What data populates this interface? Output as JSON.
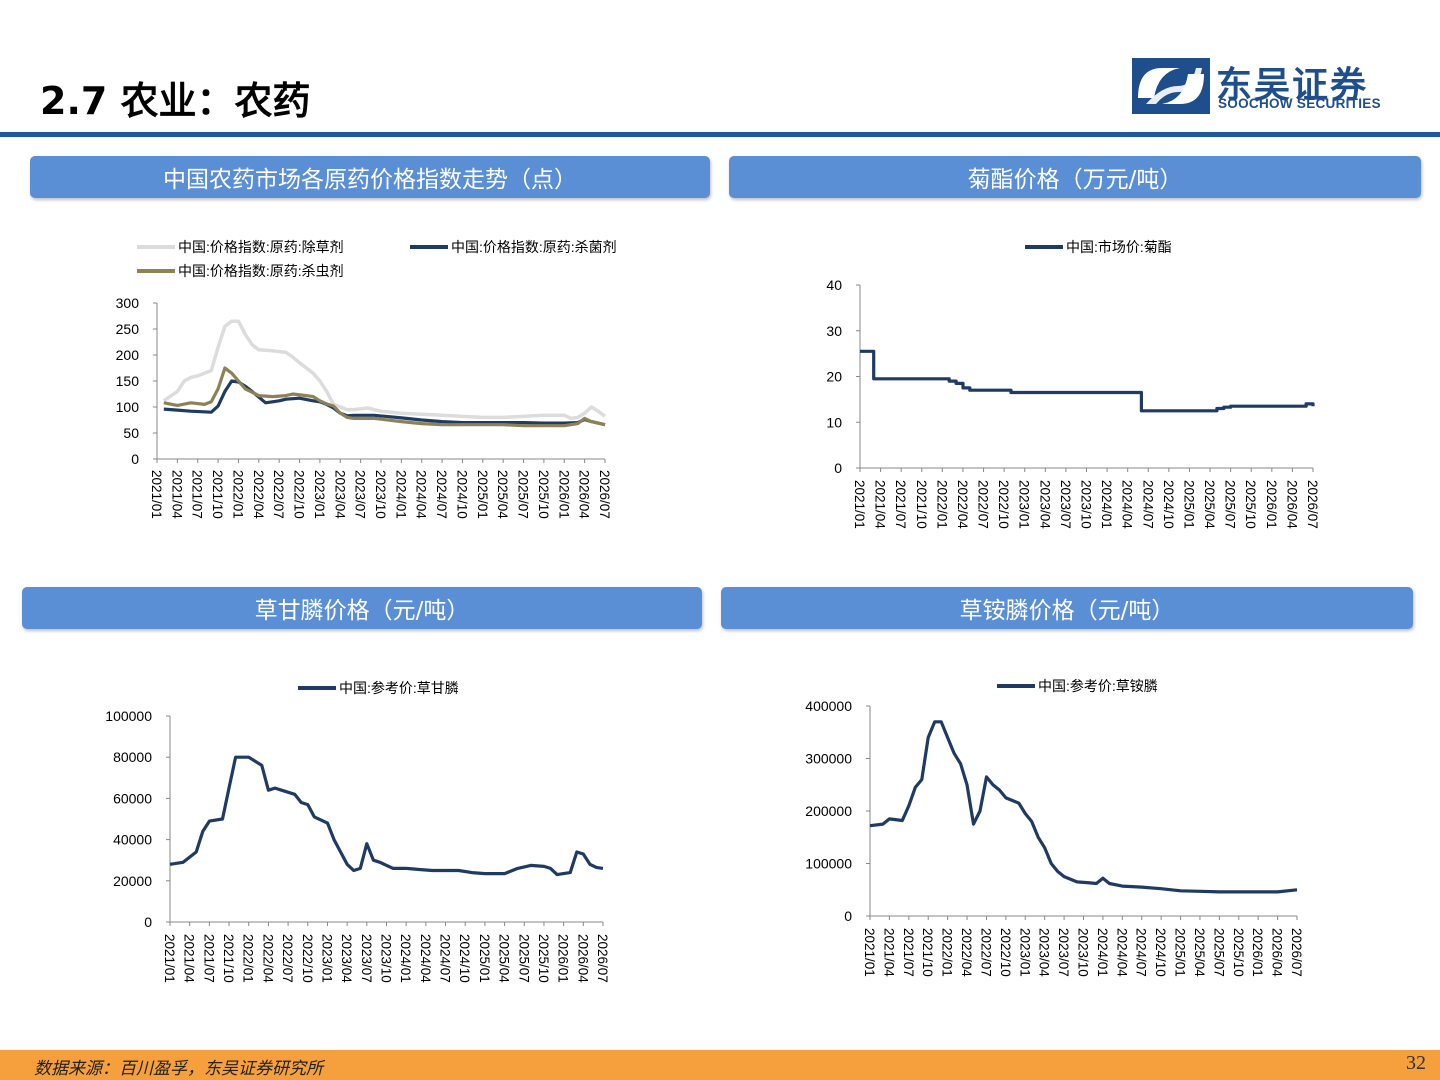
{
  "header": {
    "title": "2.7 农业：农药",
    "logo_cn": "东吴证券",
    "logo_en": "SOOCHOW SECURITIES"
  },
  "colors": {
    "accent": "#1f5a9e",
    "panel_header": "#5b8fd5",
    "footer": "#f5a03c",
    "series_dark": "#1f3a63"
  },
  "panels": [
    {
      "title": "中国农药市场各原药价格指数走势（点）"
    },
    {
      "title": "菊酯价格（万元/吨）"
    },
    {
      "title": "草甘膦价格（元/吨）"
    },
    {
      "title": "草铵膦价格（元/吨）"
    }
  ],
  "footer": {
    "source": "数据来源：百川盈孚，东吴证券研究所",
    "page_number": "32"
  },
  "chart_data": [
    {
      "type": "line",
      "title": "中国农药市场各原药价格指数走势（点）",
      "xlabel": "",
      "ylabel": "",
      "ylim": [
        0,
        300
      ],
      "yticks": [
        "0",
        "50",
        "100",
        "150",
        "200",
        "250",
        "300"
      ],
      "xticks": [
        "2021/01",
        "2021/04",
        "2021/07",
        "2021/10",
        "2022/01",
        "2022/04",
        "2022/07",
        "2022/10",
        "2023/01",
        "2023/04",
        "2023/07",
        "2023/10",
        "2024/01",
        "2024/04",
        "2024/07",
        "2024/10",
        "2025/01",
        "2025/04",
        "2025/07",
        "2025/10",
        "2026/01",
        "2026/04",
        "2026/07"
      ],
      "legend": "top",
      "series": [
        {
          "name": "中国:价格指数:原药:除草剂",
          "color": "#dcdcdc",
          "x": [
            "2021/02",
            "2021/04",
            "2021/05",
            "2021/06",
            "2021/07",
            "2021/08",
            "2021/09",
            "2021/10",
            "2021/11",
            "2021/12",
            "2022/01",
            "2022/02",
            "2022/03",
            "2022/04",
            "2022/06",
            "2022/08",
            "2022/09",
            "2022/10",
            "2022/11",
            "2022/12",
            "2023/01",
            "2023/02",
            "2023/03",
            "2023/04",
            "2023/05",
            "2023/06",
            "2023/08",
            "2023/10",
            "2024/01",
            "2024/04",
            "2024/07",
            "2024/10",
            "2025/01",
            "2025/04",
            "2025/07",
            "2025/10",
            "2026/01",
            "2026/02",
            "2026/03",
            "2026/04",
            "2026/05",
            "2026/06",
            "2026/07"
          ],
          "y": [
            112,
            130,
            150,
            157,
            160,
            165,
            170,
            215,
            255,
            265,
            265,
            240,
            220,
            210,
            208,
            205,
            196,
            185,
            175,
            165,
            150,
            130,
            105,
            100,
            95,
            95,
            98,
            92,
            88,
            86,
            84,
            82,
            80,
            80,
            82,
            84,
            84,
            78,
            80,
            88,
            100,
            92,
            82
          ]
        },
        {
          "name": "中国:价格指数:原药:杀菌剂",
          "color": "#1f3a63",
          "x": [
            "2021/02",
            "2021/04",
            "2021/06",
            "2021/09",
            "2021/10",
            "2021/11",
            "2021/12",
            "2022/01",
            "2022/02",
            "2022/03",
            "2022/05",
            "2022/07",
            "2022/08",
            "2022/10",
            "2022/12",
            "2023/01",
            "2023/02",
            "2023/03",
            "2023/04",
            "2023/05",
            "2023/06",
            "2023/09",
            "2024/01",
            "2024/04",
            "2024/07",
            "2024/10",
            "2025/01",
            "2025/04",
            "2025/07",
            "2025/10",
            "2026/01",
            "2026/03",
            "2026/04",
            "2026/05",
            "2026/07"
          ],
          "y": [
            96,
            94,
            92,
            90,
            102,
            130,
            150,
            148,
            140,
            130,
            108,
            112,
            115,
            117,
            112,
            110,
            105,
            98,
            88,
            83,
            84,
            84,
            79,
            75,
            72,
            70,
            70,
            70,
            70,
            69,
            69,
            70,
            76,
            72,
            66
          ]
        },
        {
          "name": "中国:价格指数:原药:杀虫剂",
          "color": "#8c8256",
          "x": [
            "2021/02",
            "2021/04",
            "2021/06",
            "2021/08",
            "2021/09",
            "2021/10",
            "2021/11",
            "2021/12",
            "2022/01",
            "2022/02",
            "2022/04",
            "2022/06",
            "2022/08",
            "2022/09",
            "2022/11",
            "2022/12",
            "2023/01",
            "2023/02",
            "2023/03",
            "2023/04",
            "2023/05",
            "2023/06",
            "2023/09",
            "2024/01",
            "2024/04",
            "2024/07",
            "2024/10",
            "2025/01",
            "2025/04",
            "2025/07",
            "2025/10",
            "2026/01",
            "2026/03",
            "2026/04",
            "2026/05",
            "2026/07"
          ],
          "y": [
            108,
            103,
            108,
            105,
            110,
            135,
            175,
            165,
            150,
            135,
            122,
            120,
            122,
            125,
            122,
            120,
            112,
            106,
            102,
            88,
            80,
            78,
            78,
            72,
            68,
            66,
            66,
            66,
            66,
            64,
            64,
            64,
            68,
            78,
            72,
            66
          ]
        }
      ]
    },
    {
      "type": "line",
      "title": "菊酯价格（万元/吨）",
      "xlabel": "",
      "ylabel": "",
      "ylim": [
        0,
        40
      ],
      "yticks": [
        "0",
        "10",
        "20",
        "30",
        "40"
      ],
      "xticks": [
        "2021/01",
        "2021/04",
        "2021/07",
        "2021/10",
        "2022/01",
        "2022/04",
        "2022/07",
        "2022/10",
        "2023/01",
        "2023/04",
        "2023/07",
        "2023/10",
        "2024/01",
        "2024/04",
        "2024/07",
        "2024/10",
        "2025/01",
        "2025/04",
        "2025/07",
        "2025/10",
        "2026/01",
        "2026/04",
        "2026/07"
      ],
      "legend": "top",
      "step": true,
      "series": [
        {
          "name": "中国:市场价:菊酯",
          "color": "#1f3a63",
          "x": [
            "2021/01",
            "2021/03",
            "2022/01",
            "2022/02",
            "2022/03",
            "2022/04",
            "2022/05",
            "2022/11",
            "2024/06",
            "2025/05",
            "2025/06",
            "2025/07",
            "2026/06",
            "2026/07"
          ],
          "y": [
            25.5,
            19.5,
            19.5,
            19,
            18.5,
            17.5,
            17,
            16.5,
            12.5,
            13,
            13.3,
            13.5,
            14,
            13.5
          ]
        }
      ]
    },
    {
      "type": "line",
      "title": "草甘膦价格（元/吨）",
      "xlabel": "",
      "ylabel": "",
      "ylim": [
        0,
        100000
      ],
      "yticks": [
        "0",
        "20000",
        "40000",
        "60000",
        "80000",
        "100000"
      ],
      "xticks": [
        "2021/01",
        "2021/04",
        "2021/07",
        "2021/10",
        "2022/01",
        "2022/04",
        "2022/07",
        "2022/10",
        "2023/01",
        "2023/04",
        "2023/07",
        "2023/10",
        "2024/01",
        "2024/04",
        "2024/07",
        "2024/10",
        "2025/01",
        "2025/04",
        "2025/07",
        "2025/10",
        "2026/01",
        "2026/04",
        "2026/07"
      ],
      "legend": "top",
      "series": [
        {
          "name": "中国:参考价:草甘膦",
          "color": "#1f3a63",
          "x": [
            "2021/01",
            "2021/03",
            "2021/05",
            "2021/06",
            "2021/07",
            "2021/09",
            "2021/10",
            "2021/11",
            "2022/01",
            "2022/03",
            "2022/04",
            "2022/05",
            "2022/06",
            "2022/08",
            "2022/09",
            "2022/10",
            "2022/11",
            "2023/01",
            "2023/02",
            "2023/03",
            "2023/04",
            "2023/05",
            "2023/06",
            "2023/07",
            "2023/08",
            "2023/09",
            "2023/11",
            "2024/01",
            "2024/03",
            "2024/05",
            "2024/07",
            "2024/09",
            "2024/11",
            "2025/01",
            "2025/04",
            "2025/06",
            "2025/08",
            "2025/10",
            "2025/11",
            "2025/12",
            "2026/01",
            "2026/02",
            "2026/03",
            "2026/04",
            "2026/05",
            "2026/06",
            "2026/07"
          ],
          "y": [
            28000,
            29000,
            34000,
            44000,
            49000,
            50000,
            65000,
            80000,
            80000,
            76000,
            64000,
            65000,
            64000,
            62000,
            58000,
            57000,
            51000,
            48000,
            40000,
            34000,
            28000,
            25000,
            26000,
            38000,
            30000,
            29000,
            26000,
            26000,
            25500,
            25000,
            25000,
            25000,
            24000,
            23500,
            23500,
            26000,
            27500,
            27000,
            26000,
            23000,
            23500,
            24000,
            34000,
            33000,
            28000,
            26500,
            26000
          ]
        }
      ]
    },
    {
      "type": "line",
      "title": "草铵膦价格（元/吨）",
      "xlabel": "",
      "ylabel": "",
      "ylim": [
        0,
        400000
      ],
      "yticks": [
        "0",
        "100000",
        "200000",
        "300000",
        "400000"
      ],
      "xticks": [
        "2021/01",
        "2021/04",
        "2021/07",
        "2021/10",
        "2022/01",
        "2022/04",
        "2022/07",
        "2022/10",
        "2023/01",
        "2023/04",
        "2023/07",
        "2023/10",
        "2024/01",
        "2024/04",
        "2024/07",
        "2024/10",
        "2025/01",
        "2025/04",
        "2025/07",
        "2025/10",
        "2026/01",
        "2026/04",
        "2026/07"
      ],
      "legend": "top",
      "series": [
        {
          "name": "中国:参考价:草铵膦",
          "color": "#1f3a63",
          "x": [
            "2021/01",
            "2021/03",
            "2021/04",
            "2021/06",
            "2021/07",
            "2021/08",
            "2021/09",
            "2021/10",
            "2021/11",
            "2021/12",
            "2022/01",
            "2022/02",
            "2022/03",
            "2022/04",
            "2022/05",
            "2022/06",
            "2022/07",
            "2022/08",
            "2022/09",
            "2022/10",
            "2022/12",
            "2023/01",
            "2023/02",
            "2023/03",
            "2023/04",
            "2023/05",
            "2023/06",
            "2023/07",
            "2023/09",
            "2023/11",
            "2023/12",
            "2024/01",
            "2024/02",
            "2024/04",
            "2024/07",
            "2024/10",
            "2025/01",
            "2025/04",
            "2025/07",
            "2025/10",
            "2026/01",
            "2026/04",
            "2026/07"
          ],
          "y": [
            172000,
            175000,
            185000,
            182000,
            210000,
            245000,
            260000,
            340000,
            370000,
            370000,
            340000,
            310000,
            290000,
            250000,
            175000,
            200000,
            265000,
            250000,
            240000,
            225000,
            215000,
            195000,
            180000,
            150000,
            130000,
            100000,
            85000,
            75000,
            65000,
            63000,
            62000,
            72000,
            62000,
            57000,
            55000,
            52000,
            48000,
            47000,
            46000,
            46000,
            46000,
            46000,
            50000
          ]
        }
      ]
    }
  ]
}
